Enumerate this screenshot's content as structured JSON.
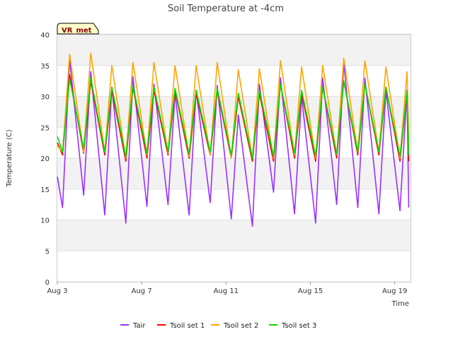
{
  "chart_data": {
    "type": "line",
    "title": "Soil Temperature at -4cm",
    "xlabel": "Time",
    "ylabel": "Temperature (C)",
    "ylim": [
      0,
      40
    ],
    "yticks": [
      0,
      5,
      10,
      15,
      20,
      25,
      30,
      35,
      40
    ],
    "xlim": [
      "2023-08-03",
      "2023-08-19T18:00"
    ],
    "xticks": [
      {
        "date": "2023-08-03",
        "label": "Aug 3"
      },
      {
        "date": "2023-08-07",
        "label": "Aug 7"
      },
      {
        "date": "2023-08-11",
        "label": "Aug 11"
      },
      {
        "date": "2023-08-15",
        "label": "Aug 15"
      },
      {
        "date": "2023-08-19",
        "label": "Aug 19"
      }
    ],
    "grid": "horizontal bands",
    "legend_position": "bottom",
    "badge": "VR_met",
    "sampling": "daily minimum (~06:00) and maximum (~14:00)",
    "x": [
      "2023-08-03T00:00",
      "2023-08-03T06:00",
      "2023-08-03T14:00",
      "2023-08-04T06:00",
      "2023-08-04T14:00",
      "2023-08-05T06:00",
      "2023-08-05T14:00",
      "2023-08-06T06:00",
      "2023-08-06T14:00",
      "2023-08-07T06:00",
      "2023-08-07T14:00",
      "2023-08-08T06:00",
      "2023-08-08T14:00",
      "2023-08-09T06:00",
      "2023-08-09T14:00",
      "2023-08-10T06:00",
      "2023-08-10T14:00",
      "2023-08-11T06:00",
      "2023-08-11T14:00",
      "2023-08-12T06:00",
      "2023-08-12T14:00",
      "2023-08-13T06:00",
      "2023-08-13T14:00",
      "2023-08-14T06:00",
      "2023-08-14T14:00",
      "2023-08-15T06:00",
      "2023-08-15T14:00",
      "2023-08-16T06:00",
      "2023-08-16T14:00",
      "2023-08-17T06:00",
      "2023-08-17T14:00",
      "2023-08-18T06:00",
      "2023-08-18T14:00",
      "2023-08-19T06:00",
      "2023-08-19T14:00",
      "2023-08-19T16:00"
    ],
    "series": [
      {
        "name": "Tair",
        "color": "#9b30ff",
        "values": [
          17.0,
          12.0,
          36.0,
          14.0,
          34.0,
          10.8,
          31.5,
          9.5,
          33.2,
          12.2,
          32.0,
          12.5,
          30.5,
          10.8,
          31.0,
          12.8,
          31.8,
          10.2,
          27.0,
          9.0,
          32.0,
          14.5,
          33.0,
          11.0,
          30.0,
          9.5,
          33.0,
          12.5,
          35.5,
          12.0,
          33.0,
          11.0,
          31.0,
          11.5,
          31.0,
          12.0
        ]
      },
      {
        "name": "Tsoil set 1",
        "color": "#ff0000",
        "values": [
          22.5,
          20.5,
          33.5,
          20.8,
          32.5,
          20.5,
          31.0,
          19.5,
          31.5,
          20.0,
          31.0,
          20.5,
          31.0,
          20.0,
          30.5,
          20.5,
          31.0,
          20.0,
          30.0,
          19.5,
          30.5,
          19.5,
          32.0,
          20.0,
          30.5,
          19.5,
          31.5,
          20.0,
          32.5,
          20.5,
          32.0,
          20.5,
          31.5,
          19.5,
          31.0,
          19.5
        ]
      },
      {
        "name": "Tsoil set 2",
        "color": "#ffa500",
        "values": [
          22.0,
          21.0,
          36.8,
          21.0,
          37.0,
          21.0,
          35.0,
          20.0,
          35.5,
          20.5,
          35.5,
          20.8,
          35.0,
          20.3,
          35.0,
          20.5,
          35.5,
          20.0,
          34.3,
          20.0,
          34.5,
          20.0,
          35.8,
          20.5,
          34.8,
          20.0,
          35.0,
          20.5,
          36.2,
          21.0,
          35.8,
          21.0,
          34.8,
          20.0,
          34.0,
          23.0
        ]
      },
      {
        "name": "Tsoil set 3",
        "color": "#00dd00",
        "values": [
          23.5,
          21.0,
          32.8,
          21.5,
          33.0,
          21.0,
          31.5,
          20.2,
          31.8,
          20.8,
          31.5,
          21.0,
          31.3,
          20.7,
          31.0,
          21.0,
          31.3,
          20.5,
          30.5,
          20.0,
          31.0,
          20.3,
          32.0,
          20.8,
          31.0,
          20.3,
          31.5,
          20.7,
          32.5,
          21.0,
          32.0,
          21.0,
          31.5,
          20.3,
          30.8,
          20.5
        ]
      }
    ]
  }
}
